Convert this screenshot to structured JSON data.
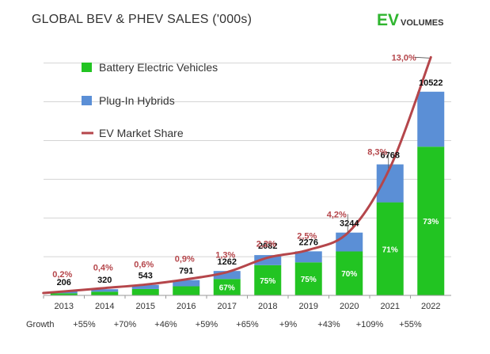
{
  "chart_data": {
    "type": "bar",
    "title": "GLOBAL BEV & PHEV SALES ('000s)",
    "categories": [
      "2013",
      "2014",
      "2015",
      "2016",
      "2017",
      "2018",
      "2019",
      "2020",
      "2021",
      "2022"
    ],
    "series": [
      {
        "name": "Battery Electric Vehicles",
        "values": [
          110,
          190,
          330,
          470,
          846,
          1562,
          1707,
          2271,
          4805,
          7681
        ],
        "color": "#22c422"
      },
      {
        "name": "Plug-In Hybrids",
        "values": [
          96,
          130,
          213,
          321,
          416,
          520,
          569,
          973,
          1963,
          2841
        ],
        "color": "#5b8fd6"
      }
    ],
    "totals": [
      "206",
      "320",
      "543",
      "791",
      "1262",
      "2082",
      "2276",
      "3244",
      "6768",
      "10522"
    ],
    "total_values": [
      206,
      320,
      543,
      791,
      1262,
      2082,
      2276,
      3244,
      6768,
      10522
    ],
    "bev_share_labels": [
      "",
      "",
      "",
      "",
      "67%",
      "75%",
      "75%",
      "70%",
      "71%",
      "73%"
    ],
    "market_share": {
      "name": "EV Market Share",
      "color": "#b5464b",
      "labels": [
        "0,2%",
        "0,4%",
        "0,6%",
        "0,9%",
        "1,3%",
        "2,2%",
        "2,5%",
        "4,2%",
        "8,3%",
        "13,0%"
      ],
      "curve_values": [
        206,
        380,
        560,
        830,
        1200,
        1950,
        2350,
        3300,
        6600,
        12300
      ]
    },
    "growth_label": "Growth",
    "growth": [
      "+55%",
      "+70%",
      "+46%",
      "+59%",
      "+65%",
      "+9%",
      "+43%",
      "+109%",
      "+55%"
    ],
    "ylim": [
      0,
      12600
    ],
    "gridlines": [
      0,
      2000,
      4000,
      6000,
      8000,
      10000,
      12000
    ],
    "grid": true,
    "legend_position": "top-left",
    "xlabel": "",
    "ylabel": ""
  },
  "brand": {
    "ev": "EV",
    "volumes": "VOLUMES"
  }
}
